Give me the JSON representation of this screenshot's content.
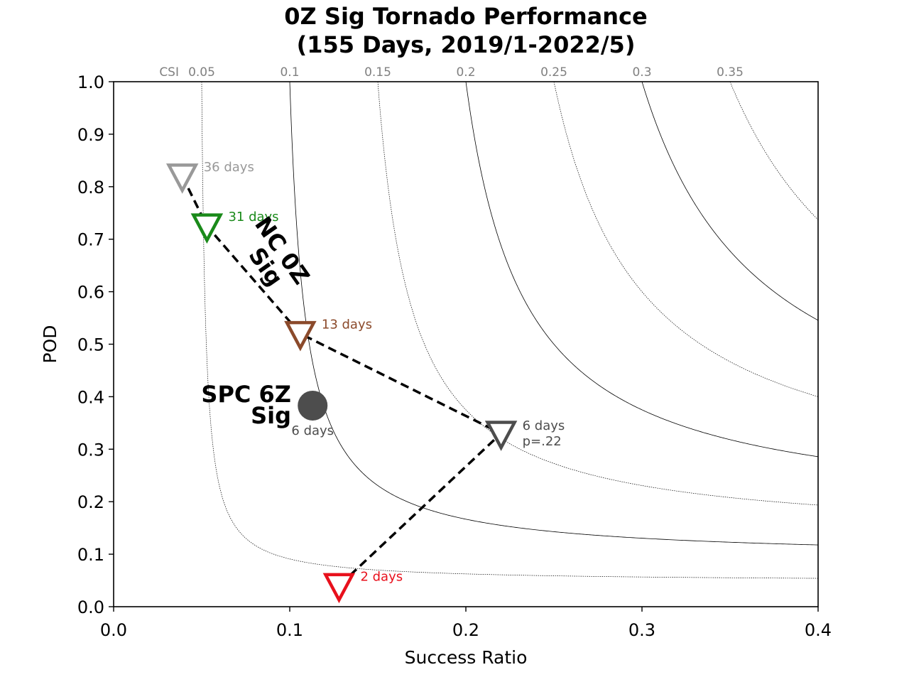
{
  "chart_data": {
    "type": "scatter",
    "title": [
      "0Z Sig Tornado Performance",
      "(155 Days, 2019/1-2022/5)"
    ],
    "xlabel": "Success Ratio",
    "ylabel": "POD",
    "xlim": [
      0.0,
      0.4
    ],
    "ylim": [
      0.0,
      1.0
    ],
    "xticks": [
      "0.0",
      "0.1",
      "0.2",
      "0.3",
      "0.4"
    ],
    "xtick_values": [
      0.0,
      0.1,
      0.2,
      0.3,
      0.4
    ],
    "yticks": [
      "0.0",
      "0.1",
      "0.2",
      "0.3",
      "0.4",
      "0.5",
      "0.6",
      "0.7",
      "0.8",
      "0.9",
      "1.0"
    ],
    "ytick_values": [
      0.0,
      0.1,
      0.2,
      0.3,
      0.4,
      0.5,
      0.6,
      0.7,
      0.8,
      0.9,
      1.0
    ],
    "csi_prefix": "CSI",
    "csi_contours": [
      {
        "value": 0.05,
        "label": "0.05",
        "style": "dotted"
      },
      {
        "value": 0.1,
        "label": "0.1",
        "style": "solid"
      },
      {
        "value": 0.15,
        "label": "0.15",
        "style": "dotted"
      },
      {
        "value": 0.2,
        "label": "0.2",
        "style": "solid"
      },
      {
        "value": 0.25,
        "label": "0.25",
        "style": "dotted"
      },
      {
        "value": 0.3,
        "label": "0.3",
        "style": "solid"
      },
      {
        "value": 0.35,
        "label": "0.35",
        "style": "dotted"
      }
    ],
    "nc_points": [
      {
        "sr": 0.039,
        "pod": 0.82,
        "label": "36 days",
        "color": "#999999"
      },
      {
        "sr": 0.053,
        "pod": 0.725,
        "label": "31 days",
        "color": "#1a8a1a"
      },
      {
        "sr": 0.106,
        "pod": 0.52,
        "label": "13 days",
        "color": "#8b4a2b"
      },
      {
        "sr": 0.22,
        "pod": 0.33,
        "label": [
          "6 days",
          "p=.22"
        ],
        "color": "#4d4d4d"
      },
      {
        "sr": 0.128,
        "pod": 0.04,
        "label": "2 days",
        "color": "#e8101c"
      }
    ],
    "spc_point": {
      "sr": 0.113,
      "pod": 0.383,
      "label": "6 days",
      "color": "#4d4d4d"
    },
    "annotations": {
      "nc": [
        "NC 0Z",
        "Sig"
      ],
      "spc": [
        "SPC 6Z",
        "Sig"
      ]
    }
  }
}
